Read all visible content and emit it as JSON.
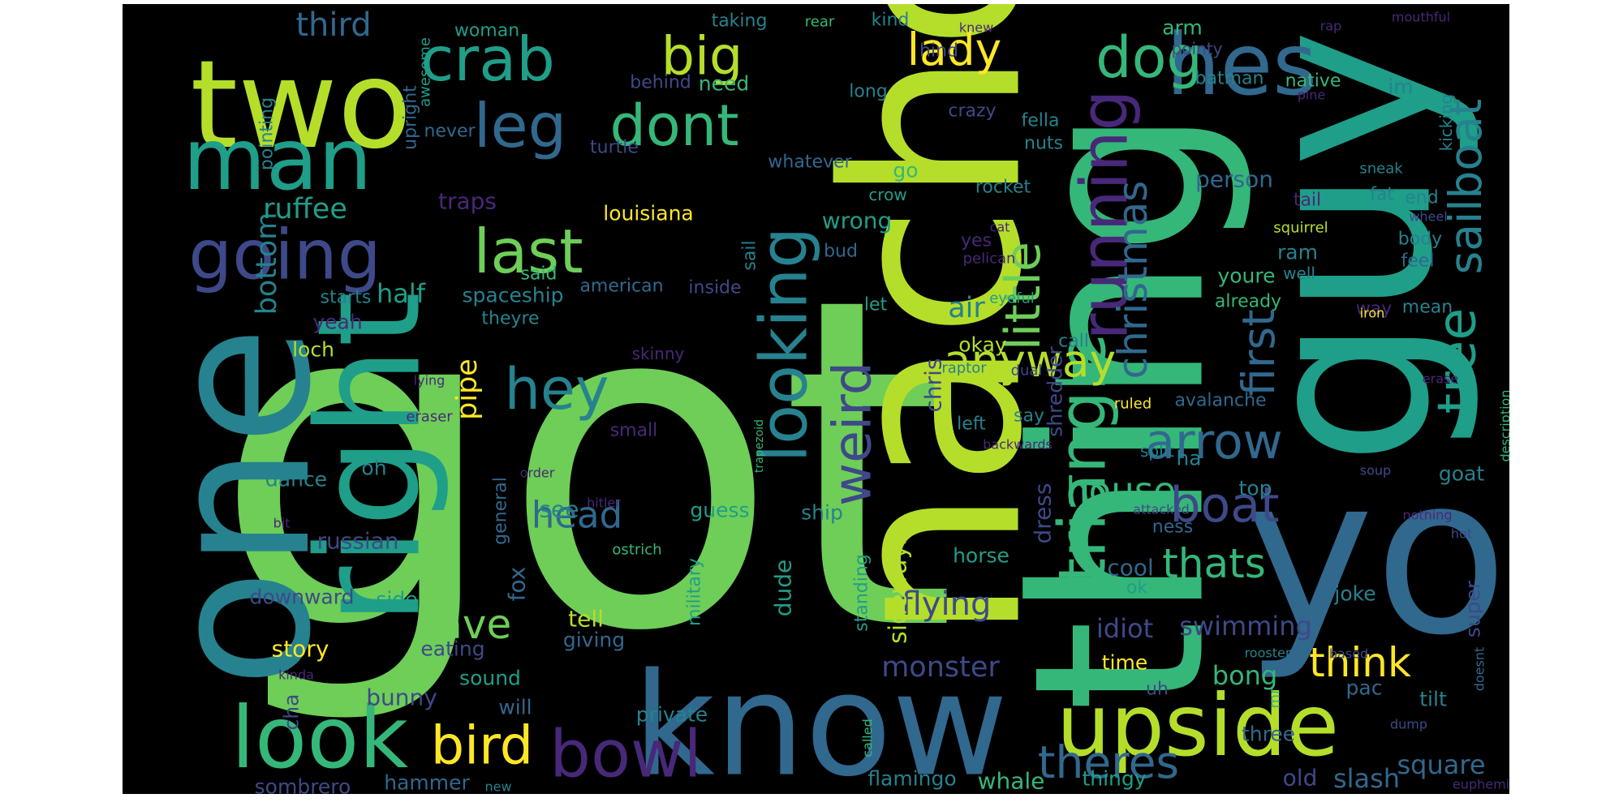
{
  "palette": {
    "background": "#000000",
    "page": "#ffffff",
    "colors": [
      "#440154",
      "#482878",
      "#3e4989",
      "#31688e",
      "#26828e",
      "#1f9e89",
      "#35b779",
      "#6ece58",
      "#b5de2b",
      "#fde725"
    ]
  },
  "words": [
    {
      "text": "got",
      "color": "#6ece58"
    },
    {
      "text": "nacho",
      "color": "#b5de2b"
    },
    {
      "text": "thing",
      "color": "#35b779"
    },
    {
      "text": "guy",
      "color": "#1f9e89"
    },
    {
      "text": "one",
      "color": "#26828e"
    },
    {
      "text": "know",
      "color": "#31688e"
    },
    {
      "text": "yo",
      "color": "#31688e"
    },
    {
      "text": "right",
      "color": "#1f9e89"
    },
    {
      "text": "two",
      "color": "#b5de2b"
    },
    {
      "text": "triangle",
      "color": "#35b779"
    },
    {
      "text": "upside",
      "color": "#b5de2b"
    },
    {
      "text": "man",
      "color": "#1f9e89"
    },
    {
      "text": "look",
      "color": "#35b779"
    },
    {
      "text": "hes",
      "color": "#31688e"
    },
    {
      "text": "looking",
      "color": "#26828e"
    },
    {
      "text": "running",
      "color": "#482878"
    },
    {
      "text": "crab",
      "color": "#1f9e89"
    },
    {
      "text": "going",
      "color": "#3e4989"
    },
    {
      "text": "bowl",
      "color": "#482878"
    },
    {
      "text": "big",
      "color": "#b5de2b"
    },
    {
      "text": "leg",
      "color": "#31688e"
    },
    {
      "text": "dog",
      "color": "#35b779"
    },
    {
      "text": "last",
      "color": "#6ece58"
    },
    {
      "text": "tree",
      "color": "#1f9e89"
    },
    {
      "text": "sailboat",
      "color": "#26828e"
    },
    {
      "text": "dont",
      "color": "#35b779"
    },
    {
      "text": "hey",
      "color": "#26828e"
    },
    {
      "text": "weird",
      "color": "#3e4989"
    },
    {
      "text": "bird",
      "color": "#fde725"
    },
    {
      "text": "lady",
      "color": "#fde725"
    },
    {
      "text": "little",
      "color": "#6ece58"
    },
    {
      "text": "arrow",
      "color": "#31688e"
    },
    {
      "text": "boat",
      "color": "#3e4989"
    },
    {
      "text": "christmas",
      "color": "#31688e"
    },
    {
      "text": "anyway",
      "color": "#b5de2b"
    },
    {
      "text": "first",
      "color": "#31688e"
    },
    {
      "text": "think",
      "color": "#fde725"
    },
    {
      "text": "theres",
      "color": "#31688e"
    },
    {
      "text": "head",
      "color": "#31688e"
    },
    {
      "text": "house",
      "color": "#35b779"
    },
    {
      "text": "thats",
      "color": "#35b779"
    },
    {
      "text": "cave",
      "color": "#6ece58"
    },
    {
      "text": "flying",
      "color": "#3e4989"
    },
    {
      "text": "third",
      "color": "#31688e"
    },
    {
      "text": "pipe",
      "color": "#fde725"
    },
    {
      "text": "bottom",
      "color": "#26828e"
    },
    {
      "text": "ruffee",
      "color": "#1f9e89"
    },
    {
      "text": "monster",
      "color": "#3e4989"
    },
    {
      "text": "idiot",
      "color": "#3e4989"
    },
    {
      "text": "swimming",
      "color": "#3e4989"
    },
    {
      "text": "sideways",
      "color": "#b5de2b"
    },
    {
      "text": "air",
      "color": "#26828e"
    },
    {
      "text": "half",
      "color": "#1f9e89"
    },
    {
      "text": "chris",
      "color": "#3e4989"
    },
    {
      "text": "bong",
      "color": "#35b779"
    },
    {
      "text": "square",
      "color": "#31688e"
    },
    {
      "text": "shredder",
      "color": "#3e4989"
    },
    {
      "text": "spaceship",
      "color": "#26828e"
    },
    {
      "text": "traps",
      "color": "#482878"
    },
    {
      "text": "russian",
      "color": "#3e4989"
    },
    {
      "text": "wrong",
      "color": "#1f9e89"
    },
    {
      "text": "person",
      "color": "#31688e"
    },
    {
      "text": "louisiana",
      "color": "#fde725"
    },
    {
      "text": "tell",
      "color": "#b5de2b"
    },
    {
      "text": "story",
      "color": "#fde725"
    },
    {
      "text": "sombrero",
      "color": "#3e4989"
    },
    {
      "text": "hammer",
      "color": "#31688e"
    },
    {
      "text": "flamingo",
      "color": "#26828e"
    },
    {
      "text": "whale",
      "color": "#35b779"
    },
    {
      "text": "thingy",
      "color": "#1f9e89"
    },
    {
      "text": "slash",
      "color": "#31688e"
    },
    {
      "text": "old",
      "color": "#3e4989"
    },
    {
      "text": "three",
      "color": "#31688e"
    },
    {
      "text": "pac",
      "color": "#31688e"
    },
    {
      "text": "dress",
      "color": "#3e4989"
    },
    {
      "text": "horse",
      "color": "#1f9e89"
    },
    {
      "text": "cool",
      "color": "#31688e"
    },
    {
      "text": "time",
      "color": "#fde725"
    },
    {
      "text": "dude",
      "color": "#1f9e89"
    },
    {
      "text": "giving",
      "color": "#31688e"
    },
    {
      "text": "military",
      "color": "#1f9e89"
    },
    {
      "text": "private",
      "color": "#26828e"
    },
    {
      "text": "bunny",
      "color": "#3e4989"
    },
    {
      "text": "sound",
      "color": "#1f9e89"
    },
    {
      "text": "will",
      "color": "#31688e"
    },
    {
      "text": "eating",
      "color": "#3e4989"
    },
    {
      "text": "dance",
      "color": "#26828e"
    },
    {
      "text": "downward",
      "color": "#3e4989"
    },
    {
      "text": "side",
      "color": "#1f9e89"
    },
    {
      "text": "cha",
      "color": "#3e4989"
    },
    {
      "text": "fox",
      "color": "#31688e"
    },
    {
      "text": "general",
      "color": "#31688e"
    },
    {
      "text": "see",
      "color": "#26828e"
    },
    {
      "text": "guess",
      "color": "#1f9e89"
    },
    {
      "text": "ship",
      "color": "#26828e"
    },
    {
      "text": "standing",
      "color": "#1f9e89"
    },
    {
      "text": "ha",
      "color": "#26828e"
    },
    {
      "text": "top",
      "color": "#26828e"
    },
    {
      "text": "tilt",
      "color": "#26828e"
    },
    {
      "text": "goat",
      "color": "#26828e"
    },
    {
      "text": "joke",
      "color": "#26828e"
    },
    {
      "text": "super",
      "color": "#3e4989"
    },
    {
      "text": "avalanche",
      "color": "#31688e"
    },
    {
      "text": "ness",
      "color": "#31688e"
    },
    {
      "text": "attacked",
      "color": "#3e4989"
    },
    {
      "text": "split",
      "color": "#26828e"
    },
    {
      "text": "ok",
      "color": "#1f9e89"
    },
    {
      "text": "uh",
      "color": "#3e4989"
    },
    {
      "text": "mr",
      "color": "#35b779"
    },
    {
      "text": "left",
      "color": "#26828e"
    },
    {
      "text": "say",
      "color": "#26828e"
    },
    {
      "text": "okay",
      "color": "#b5de2b"
    },
    {
      "text": "small",
      "color": "#482878"
    },
    {
      "text": "skinny",
      "color": "#482878"
    },
    {
      "text": "oh",
      "color": "#26828e"
    },
    {
      "text": "loch",
      "color": "#b5de2b"
    },
    {
      "text": "yeah",
      "color": "#482878"
    },
    {
      "text": "starts",
      "color": "#26828e"
    },
    {
      "text": "theyre",
      "color": "#26828e"
    },
    {
      "text": "american",
      "color": "#31688e"
    },
    {
      "text": "inside",
      "color": "#3e4989"
    },
    {
      "text": "said",
      "color": "#35b779"
    },
    {
      "text": "sail",
      "color": "#26828e"
    },
    {
      "text": "let",
      "color": "#1f9e89"
    },
    {
      "text": "bud",
      "color": "#31688e"
    },
    {
      "text": "yes",
      "color": "#482878"
    },
    {
      "text": "pelican",
      "color": "#482878"
    },
    {
      "text": "cat",
      "color": "#482878"
    },
    {
      "text": "eyeful",
      "color": "#1f9e89"
    },
    {
      "text": "call",
      "color": "#26828e"
    },
    {
      "text": "raptor",
      "color": "#26828e"
    },
    {
      "text": "dual",
      "color": "#3e4989"
    },
    {
      "text": "ruled",
      "color": "#fde725"
    },
    {
      "text": "crazy",
      "color": "#3e4989"
    },
    {
      "text": "rocket",
      "color": "#26828e"
    },
    {
      "text": "crow",
      "color": "#1f9e89"
    },
    {
      "text": "whatever",
      "color": "#31688e"
    },
    {
      "text": "go",
      "color": "#35b779"
    },
    {
      "text": "need",
      "color": "#35b779"
    },
    {
      "text": "hind",
      "color": "#3e4989"
    },
    {
      "text": "fella",
      "color": "#26828e"
    },
    {
      "text": "nuts",
      "color": "#26828e"
    },
    {
      "text": "long",
      "color": "#26828e"
    },
    {
      "text": "kind",
      "color": "#26828e"
    },
    {
      "text": "knew",
      "color": "#482878"
    },
    {
      "text": "rear",
      "color": "#35b779"
    },
    {
      "text": "taking",
      "color": "#26828e"
    },
    {
      "text": "woman",
      "color": "#1f9e89"
    },
    {
      "text": "awesome",
      "color": "#1f9e89"
    },
    {
      "text": "upright",
      "color": "#31688e"
    },
    {
      "text": "behind",
      "color": "#3e4989"
    },
    {
      "text": "turtle",
      "color": "#3e4989"
    },
    {
      "text": "never",
      "color": "#31688e"
    },
    {
      "text": "pointing",
      "color": "#26828e"
    },
    {
      "text": "arm",
      "color": "#35b779"
    },
    {
      "text": "pointy",
      "color": "#3e4989"
    },
    {
      "text": "batman",
      "color": "#26828e"
    },
    {
      "text": "native",
      "color": "#35b779"
    },
    {
      "text": "im",
      "color": "#26828e"
    },
    {
      "text": "rap",
      "color": "#482878"
    },
    {
      "text": "mouthful",
      "color": "#482878"
    },
    {
      "text": "pine",
      "color": "#482878"
    },
    {
      "text": "kicking",
      "color": "#26828e"
    },
    {
      "text": "sneak",
      "color": "#26828e"
    },
    {
      "text": "wheel",
      "color": "#3e4989"
    },
    {
      "text": "fat",
      "color": "#26828e"
    },
    {
      "text": "end",
      "color": "#26828e"
    },
    {
      "text": "tail",
      "color": "#482878"
    },
    {
      "text": "squirrel",
      "color": "#b5de2b"
    },
    {
      "text": "body",
      "color": "#26828e"
    },
    {
      "text": "feel",
      "color": "#31688e"
    },
    {
      "text": "ram",
      "color": "#26828e"
    },
    {
      "text": "well",
      "color": "#26828e"
    },
    {
      "text": "youre",
      "color": "#35b779"
    },
    {
      "text": "already",
      "color": "#35b779"
    },
    {
      "text": "way",
      "color": "#482878"
    },
    {
      "text": "mean",
      "color": "#26828e"
    },
    {
      "text": "iron",
      "color": "#fde725"
    },
    {
      "text": "erase",
      "color": "#482878"
    },
    {
      "text": "soup",
      "color": "#3e4989"
    },
    {
      "text": "description",
      "color": "#35b779"
    },
    {
      "text": "lying",
      "color": "#482878"
    },
    {
      "text": "eraser",
      "color": "#482878"
    },
    {
      "text": "order",
      "color": "#482878"
    },
    {
      "text": "hitler",
      "color": "#482878"
    },
    {
      "text": "trapezoid",
      "color": "#35b779"
    },
    {
      "text": "backwards",
      "color": "#482878"
    },
    {
      "text": "ostrich",
      "color": "#35b779"
    },
    {
      "text": "bit",
      "color": "#482878"
    },
    {
      "text": "nothing",
      "color": "#482878"
    },
    {
      "text": "hot",
      "color": "#3e4989"
    },
    {
      "text": "doesnt",
      "color": "#31688e"
    },
    {
      "text": "dump",
      "color": "#3e4989"
    },
    {
      "text": "rooster",
      "color": "#26828e"
    },
    {
      "text": "based",
      "color": "#3e4989"
    },
    {
      "text": "called",
      "color": "#35b779"
    },
    {
      "text": "new",
      "color": "#26828e"
    },
    {
      "text": "kinda",
      "color": "#482878"
    },
    {
      "text": "euphemism",
      "color": "#482878"
    }
  ]
}
